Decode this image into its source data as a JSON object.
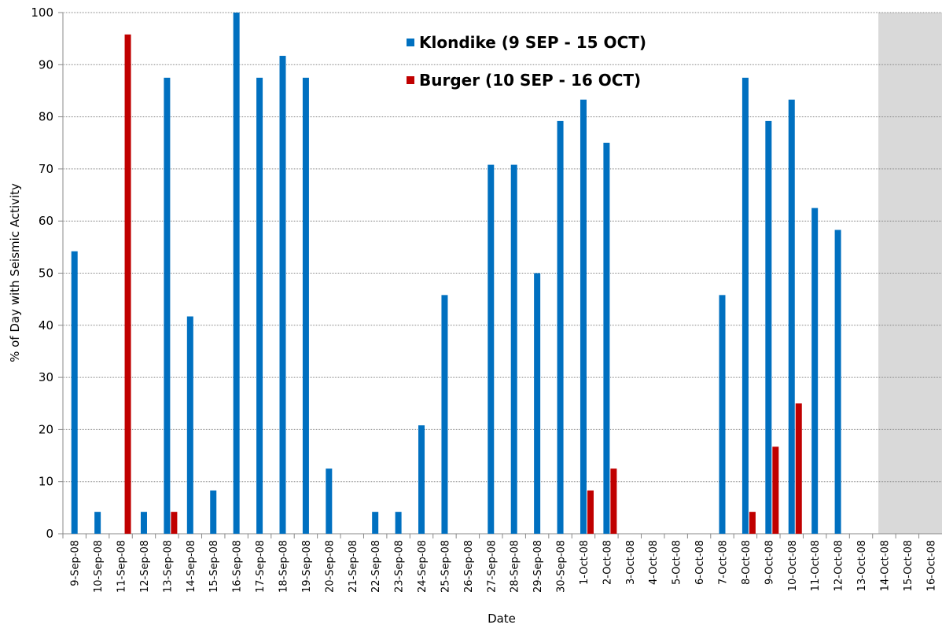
{
  "chart_data": {
    "type": "bar",
    "x_label": "Date",
    "y_label": "% of Day with Seismic Activity",
    "categories": [
      "9-Sep-08",
      "10-Sep-08",
      "11-Sep-08",
      "12-Sep-08",
      "13-Sep-08",
      "14-Sep-08",
      "15-Sep-08",
      "16-Sep-08",
      "17-Sep-08",
      "18-Sep-08",
      "19-Sep-08",
      "20-Sep-08",
      "21-Sep-08",
      "22-Sep-08",
      "23-Sep-08",
      "24-Sep-08",
      "25-Sep-08",
      "26-Sep-08",
      "27-Sep-08",
      "28-Sep-08",
      "29-Sep-08",
      "30-Sep-08",
      "1-Oct-08",
      "2-Oct-08",
      "3-Oct-08",
      "4-Oct-08",
      "5-Oct-08",
      "6-Oct-08",
      "7-Oct-08",
      "8-Oct-08",
      "9-Oct-08",
      "10-Oct-08",
      "11-Oct-08",
      "12-Oct-08",
      "13-Oct-08",
      "14-Oct-08",
      "15-Oct-08",
      "16-Oct-08"
    ],
    "series": [
      {
        "name": "Klondike (9 SEP - 15 OCT)",
        "color": "#0070c0",
        "values": [
          54.2,
          4.2,
          0,
          4.2,
          87.5,
          41.7,
          8.3,
          100,
          87.5,
          91.7,
          87.5,
          12.5,
          0,
          4.2,
          4.2,
          20.8,
          45.8,
          0,
          70.8,
          70.8,
          50,
          79.2,
          83.3,
          75,
          0,
          0,
          0,
          0,
          45.8,
          87.5,
          79.2,
          83.3,
          62.5,
          58.3,
          0,
          null,
          null,
          null
        ]
      },
      {
        "name": "Burger (10 SEP - 16 OCT)",
        "color": "#c00000",
        "values": [
          null,
          0,
          95.8,
          0,
          4.2,
          0,
          0,
          0,
          0,
          0,
          0,
          0,
          0,
          0,
          0,
          0,
          0,
          0,
          0,
          0,
          0,
          0,
          8.3,
          12.5,
          0,
          0,
          0,
          0,
          0,
          4.2,
          16.7,
          25,
          0,
          0,
          0,
          null,
          null,
          null
        ]
      }
    ],
    "ylim": [
      0,
      100
    ],
    "yticks": [
      0,
      10,
      20,
      30,
      40,
      50,
      60,
      70,
      80,
      90,
      100
    ],
    "grid": true
  }
}
